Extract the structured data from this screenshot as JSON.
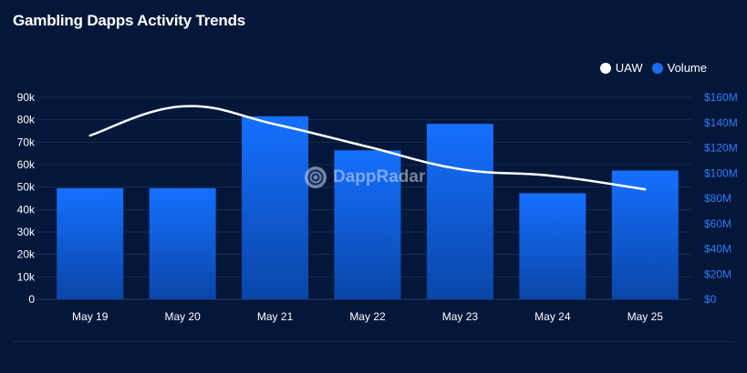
{
  "chart_data": {
    "type": "bar+line",
    "title": "Gambling Dapps Activity Trends",
    "categories": [
      "May 19",
      "May 20",
      "May 21",
      "May 22",
      "May 23",
      "May 24",
      "May 25"
    ],
    "series": [
      {
        "name": "Volume",
        "type": "bar",
        "axis": "right",
        "color": "#1a6cf0",
        "values": [
          88000000,
          88000000,
          145000000,
          118000000,
          139000000,
          84000000,
          102000000
        ]
      },
      {
        "name": "UAW",
        "type": "line",
        "axis": "left",
        "color": "#ffffff",
        "values": [
          73000,
          86000,
          78000,
          68000,
          58000,
          55000,
          49000
        ]
      }
    ],
    "left_axis": {
      "min": 0,
      "max": 90000,
      "ticks": [
        "0",
        "10k",
        "20k",
        "30k",
        "40k",
        "50k",
        "60k",
        "70k",
        "80k",
        "90k"
      ]
    },
    "right_axis": {
      "min": 0,
      "max": 160000000,
      "ticks": [
        "$0",
        "$20M",
        "$40M",
        "$60M",
        "$80M",
        "$100M",
        "$120M",
        "$140M",
        "$160M"
      ]
    },
    "legend": [
      {
        "label": "UAW",
        "color": "#ffffff"
      },
      {
        "label": "Volume",
        "color": "#1a6cf0"
      }
    ],
    "legend_position": "top-right"
  },
  "watermark": "DappRadar"
}
